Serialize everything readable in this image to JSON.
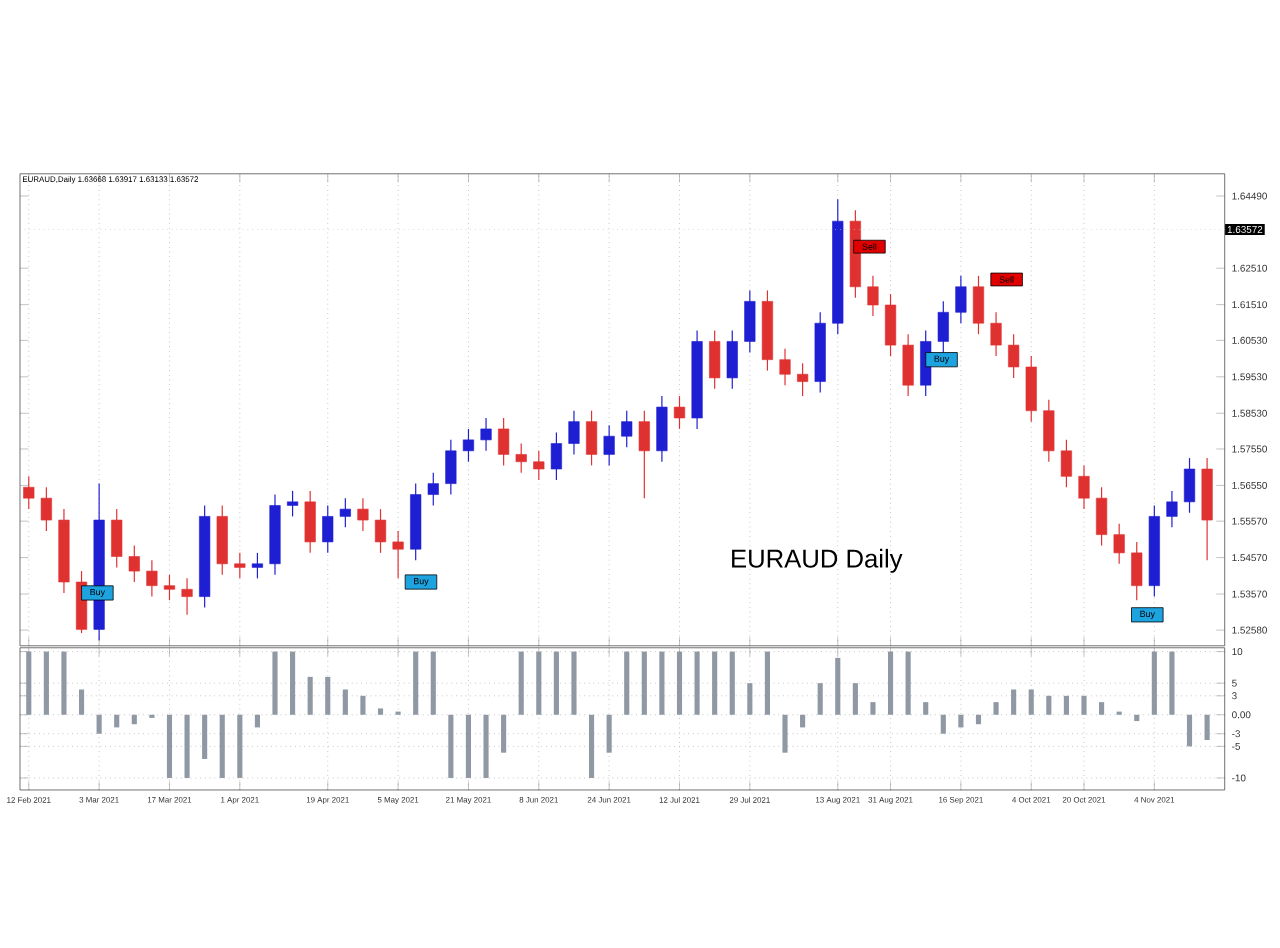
{
  "chart_data": [
    {
      "type": "candlestick",
      "title": "EURAUD Daily",
      "subtitle": "EURAUD,Daily 1.63668 1.63917 1.63133 1.63572",
      "categories": [
        null,
        null,
        null,
        null,
        null,
        null,
        null,
        null,
        null,
        null,
        null,
        null,
        null,
        null,
        null,
        null,
        null,
        null,
        null,
        null,
        null,
        null,
        null,
        null,
        null,
        null,
        null,
        null,
        null,
        null,
        null,
        null,
        null,
        null,
        null,
        null,
        null,
        null,
        null,
        null,
        null,
        null,
        null,
        null,
        null,
        null,
        null,
        null,
        null,
        null,
        null,
        null,
        null,
        null,
        null,
        null,
        null,
        null,
        null,
        null,
        null,
        null,
        null,
        null,
        null,
        null,
        null,
        null
      ],
      "ohlc": [
        [
          1.565,
          1.568,
          1.559,
          1.562
        ],
        [
          1.562,
          1.565,
          1.553,
          1.556
        ],
        [
          1.556,
          1.559,
          1.536,
          1.539
        ],
        [
          1.539,
          1.542,
          1.525,
          1.526
        ],
        [
          1.526,
          1.566,
          1.523,
          1.556
        ],
        [
          1.556,
          1.559,
          1.543,
          1.546
        ],
        [
          1.546,
          1.549,
          1.539,
          1.542
        ],
        [
          1.542,
          1.545,
          1.535,
          1.538
        ],
        [
          1.538,
          1.541,
          1.534,
          1.537
        ],
        [
          1.537,
          1.54,
          1.53,
          1.535
        ],
        [
          1.535,
          1.56,
          1.532,
          1.557
        ],
        [
          1.557,
          1.56,
          1.541,
          1.544
        ],
        [
          1.544,
          1.547,
          1.54,
          1.543
        ],
        [
          1.543,
          1.547,
          1.54,
          1.544
        ],
        [
          1.544,
          1.563,
          1.541,
          1.56
        ],
        [
          1.56,
          1.564,
          1.557,
          1.561
        ],
        [
          1.561,
          1.564,
          1.547,
          1.55
        ],
        [
          1.55,
          1.56,
          1.547,
          1.557
        ],
        [
          1.557,
          1.562,
          1.554,
          1.559
        ],
        [
          1.559,
          1.562,
          1.553,
          1.556
        ],
        [
          1.556,
          1.559,
          1.547,
          1.55
        ],
        [
          1.55,
          1.553,
          1.54,
          1.548
        ],
        [
          1.548,
          1.566,
          1.545,
          1.563
        ],
        [
          1.563,
          1.569,
          1.56,
          1.566
        ],
        [
          1.566,
          1.578,
          1.563,
          1.575
        ],
        [
          1.575,
          1.581,
          1.572,
          1.578
        ],
        [
          1.578,
          1.584,
          1.575,
          1.581
        ],
        [
          1.581,
          1.584,
          1.571,
          1.574
        ],
        [
          1.574,
          1.577,
          1.569,
          1.572
        ],
        [
          1.572,
          1.575,
          1.567,
          1.57
        ],
        [
          1.57,
          1.58,
          1.567,
          1.577
        ],
        [
          1.577,
          1.586,
          1.574,
          1.583
        ],
        [
          1.583,
          1.586,
          1.571,
          1.574
        ],
        [
          1.574,
          1.582,
          1.571,
          1.579
        ],
        [
          1.579,
          1.586,
          1.576,
          1.583
        ],
        [
          1.583,
          1.586,
          1.562,
          1.575
        ],
        [
          1.575,
          1.59,
          1.572,
          1.587
        ],
        [
          1.587,
          1.59,
          1.581,
          1.584
        ],
        [
          1.584,
          1.608,
          1.581,
          1.605
        ],
        [
          1.605,
          1.608,
          1.592,
          1.595
        ],
        [
          1.595,
          1.608,
          1.592,
          1.605
        ],
        [
          1.605,
          1.619,
          1.602,
          1.616
        ],
        [
          1.616,
          1.619,
          1.597,
          1.6
        ],
        [
          1.6,
          1.603,
          1.593,
          1.596
        ],
        [
          1.596,
          1.599,
          1.59,
          1.594
        ],
        [
          1.594,
          1.613,
          1.591,
          1.61
        ],
        [
          1.61,
          1.644,
          1.607,
          1.638
        ],
        [
          1.638,
          1.641,
          1.617,
          1.62
        ],
        [
          1.62,
          1.623,
          1.612,
          1.615
        ],
        [
          1.615,
          1.618,
          1.601,
          1.604
        ],
        [
          1.604,
          1.607,
          1.59,
          1.593
        ],
        [
          1.593,
          1.608,
          1.59,
          1.605
        ],
        [
          1.605,
          1.616,
          1.602,
          1.613
        ],
        [
          1.613,
          1.623,
          1.61,
          1.62
        ],
        [
          1.62,
          1.623,
          1.607,
          1.61
        ],
        [
          1.61,
          1.613,
          1.601,
          1.604
        ],
        [
          1.604,
          1.607,
          1.595,
          1.598
        ],
        [
          1.598,
          1.601,
          1.583,
          1.586
        ],
        [
          1.586,
          1.589,
          1.572,
          1.575
        ],
        [
          1.575,
          1.578,
          1.565,
          1.568
        ],
        [
          1.568,
          1.571,
          1.559,
          1.562
        ],
        [
          1.562,
          1.565,
          1.549,
          1.552
        ],
        [
          1.552,
          1.555,
          1.544,
          1.547
        ],
        [
          1.547,
          1.55,
          1.534,
          1.538
        ],
        [
          1.538,
          1.56,
          1.535,
          1.557
        ],
        [
          1.557,
          1.564,
          1.554,
          1.561
        ],
        [
          1.561,
          1.573,
          1.558,
          1.57
        ],
        [
          1.57,
          1.573,
          1.545,
          1.556
        ]
      ],
      "ylim": [
        1.5215,
        1.651
      ],
      "yticks": [
        {
          "value": 1.6449,
          "label": "1.64490"
        },
        {
          "value": 1.6251,
          "label": "1.62510"
        },
        {
          "value": 1.6151,
          "label": "1.61510"
        },
        {
          "value": 1.6053,
          "label": "1.60530"
        },
        {
          "value": 1.5953,
          "label": "1.59530"
        },
        {
          "value": 1.5853,
          "label": "1.58530"
        },
        {
          "value": 1.5755,
          "label": "1.57550"
        },
        {
          "value": 1.5655,
          "label": "1.56550"
        },
        {
          "value": 1.5557,
          "label": "1.55570"
        },
        {
          "value": 1.5457,
          "label": "1.54570"
        },
        {
          "value": 1.5357,
          "label": "1.53570"
        },
        {
          "value": 1.5258,
          "label": "1.52580"
        }
      ],
      "tick_labels": "y",
      "grid": "x",
      "ref_lines": [
        {
          "axis": "y",
          "value": 1.63572,
          "label": "1.63572",
          "color": "#c8c8c8",
          "line_style": "dotted"
        }
      ],
      "annotations": [
        {
          "text": "Buy",
          "y": 1.536
        },
        {
          "text": "Buy",
          "y": 1.539
        },
        {
          "text": "Sell",
          "y": 1.631
        },
        {
          "text": "Buy",
          "y": 1.6
        },
        {
          "text": "Sell",
          "y": 1.622
        },
        {
          "text": "Buy",
          "y": 1.53
        }
      ]
    },
    {
      "type": "bar",
      "categories": [
        "12 Feb 2021",
        null,
        null,
        null,
        "3 Mar 2021",
        null,
        null,
        null,
        "17 Mar 2021",
        null,
        null,
        null,
        "1 Apr 2021",
        null,
        null,
        null,
        null,
        "19 Apr 2021",
        null,
        null,
        null,
        "5 May 2021",
        null,
        null,
        null,
        "21 May 2021",
        null,
        null,
        null,
        "8 Jun 2021",
        null,
        null,
        null,
        "24 Jun 2021",
        null,
        null,
        null,
        "12 Jul 2021",
        null,
        null,
        null,
        "29 Jul 2021",
        null,
        null,
        null,
        null,
        "13 Aug 2021",
        null,
        null,
        "31 Aug 2021",
        null,
        null,
        null,
        "16 Sep 2021",
        null,
        null,
        null,
        "4 Oct 2021",
        null,
        null,
        "20 Oct 2021",
        null,
        null,
        null,
        "4 Nov 2021",
        null,
        null,
        null
      ],
      "values": [
        10,
        10,
        10,
        4,
        -3,
        -2,
        -1.5,
        -0.5,
        -10,
        -10,
        -7,
        -10,
        -10,
        -2,
        10,
        10,
        6,
        6,
        4,
        3,
        1,
        0.5,
        10,
        10,
        -10,
        -10,
        -10,
        -6,
        10,
        10,
        10,
        10,
        -10,
        -6,
        10,
        10,
        10,
        10,
        10,
        10,
        10,
        5,
        10,
        -6,
        -2,
        5,
        9,
        5,
        2,
        10,
        10,
        2,
        -3,
        -2,
        -1.5,
        2,
        4,
        4,
        3,
        3,
        3,
        2,
        0.5,
        -1,
        10,
        10,
        -5,
        -4
      ],
      "color": "#8f98a3",
      "ylim": [
        -11.9,
        10.6
      ],
      "yticks": [
        10,
        5,
        3,
        {
          "value": 0,
          "label": "0.00"
        },
        -3,
        -5,
        -10
      ],
      "grid": true
    }
  ]
}
